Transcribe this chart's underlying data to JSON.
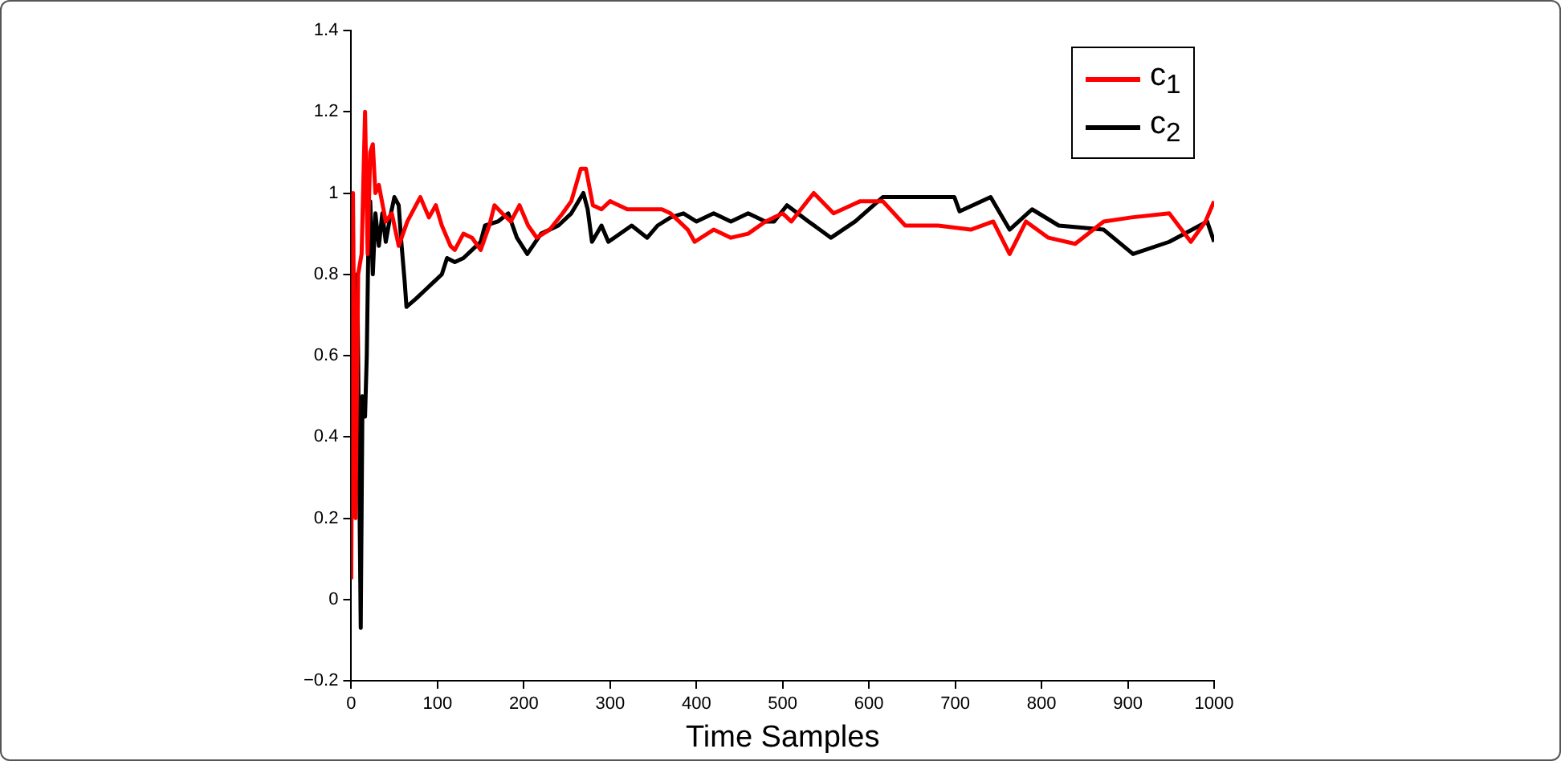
{
  "chart_data": {
    "type": "line",
    "xlabel": "Time Samples",
    "xlim": [
      0,
      1000
    ],
    "xticks": [
      0,
      100,
      200,
      300,
      400,
      500,
      600,
      700,
      800,
      900,
      1000
    ],
    "ylim": [
      -0.2,
      1.4
    ],
    "yticks": [
      {
        "value": -0.2,
        "label": "−0.2"
      },
      0,
      0.2,
      0.4,
      0.6,
      0.8,
      1,
      1.2,
      1.4
    ],
    "grid": false,
    "legend": "top right",
    "marker": "none",
    "line_style": "solid",
    "series": [
      {
        "name": "c$_{1}$",
        "color": "#ff0000",
        "x": [
          0,
          2,
          5,
          8,
          12,
          16,
          19,
          22,
          25,
          28,
          32,
          40,
          47,
          55,
          65,
          75,
          80,
          90,
          98,
          105,
          115,
          120,
          130,
          140,
          150,
          160,
          166,
          175,
          185,
          195,
          205,
          215,
          230,
          245,
          255,
          266,
          272,
          280,
          290,
          300,
          320,
          340,
          360,
          370,
          380,
          390,
          398,
          420,
          440,
          460,
          480,
          500,
          510,
          536,
          559,
          590,
          616,
          642,
          680,
          718,
          744,
          763,
          782,
          808,
          839,
          872,
          904,
          948,
          973,
          990,
          1000
        ],
        "values": [
          0.05,
          1.0,
          0.2,
          0.8,
          0.85,
          1.2,
          0.85,
          1.1,
          1.12,
          1.0,
          1.02,
          0.93,
          0.95,
          0.87,
          0.93,
          0.97,
          0.99,
          0.94,
          0.97,
          0.92,
          0.87,
          0.86,
          0.9,
          0.89,
          0.86,
          0.92,
          0.97,
          0.95,
          0.93,
          0.97,
          0.92,
          0.89,
          0.91,
          0.95,
          0.98,
          1.06,
          1.06,
          0.97,
          0.96,
          0.98,
          0.96,
          0.96,
          0.96,
          0.95,
          0.93,
          0.91,
          0.88,
          0.91,
          0.89,
          0.9,
          0.93,
          0.95,
          0.93,
          1.0,
          0.95,
          0.98,
          0.98,
          0.92,
          0.92,
          0.91,
          0.93,
          0.85,
          0.93,
          0.89,
          0.875,
          0.93,
          0.94,
          0.95,
          0.88,
          0.93,
          0.98
        ]
      },
      {
        "name": "c$_{2}$",
        "color": "#000000",
        "x": [
          1,
          4,
          7,
          11,
          13,
          16,
          18,
          20,
          22,
          25,
          28,
          32,
          36,
          40,
          45,
          50,
          55,
          58,
          62,
          64,
          75,
          85,
          95,
          105,
          111,
          120,
          130,
          140,
          150,
          155,
          170,
          182,
          192,
          204,
          220,
          240,
          255,
          269,
          274,
          279,
          290,
          298,
          325,
          343,
          355,
          370,
          385,
          400,
          420,
          440,
          460,
          480,
          490,
          505,
          530,
          556,
          584,
          616,
          655,
          699,
          705,
          741,
          763,
          789,
          820,
          872,
          906,
          948,
          992,
          1000
        ],
        "values": [
          0.85,
          0.3,
          0.8,
          -0.07,
          0.5,
          0.45,
          0.6,
          0.9,
          0.98,
          0.8,
          0.95,
          0.87,
          0.95,
          0.88,
          0.94,
          0.99,
          0.97,
          0.88,
          0.78,
          0.72,
          0.74,
          0.76,
          0.78,
          0.8,
          0.84,
          0.83,
          0.84,
          0.86,
          0.88,
          0.92,
          0.93,
          0.95,
          0.89,
          0.85,
          0.9,
          0.92,
          0.95,
          1.0,
          0.96,
          0.88,
          0.92,
          0.88,
          0.92,
          0.89,
          0.92,
          0.94,
          0.95,
          0.93,
          0.95,
          0.93,
          0.95,
          0.93,
          0.93,
          0.97,
          0.93,
          0.89,
          0.93,
          0.99,
          0.99,
          0.99,
          0.955,
          0.99,
          0.91,
          0.96,
          0.92,
          0.91,
          0.85,
          0.88,
          0.93,
          0.88
        ]
      }
    ]
  }
}
